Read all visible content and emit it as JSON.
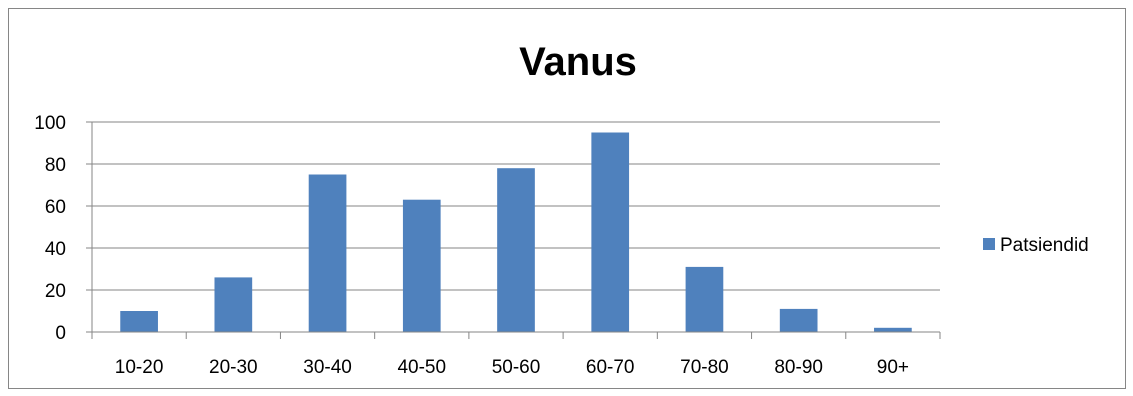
{
  "chart_data": {
    "type": "bar",
    "title": "Vanus",
    "categories": [
      "10-20",
      "20-30",
      "30-40",
      "40-50",
      "50-60",
      "60-70",
      "70-80",
      "80-90",
      "90+"
    ],
    "series": [
      {
        "name": "Patsiendid",
        "values": [
          10,
          26,
          75,
          63,
          78,
          95,
          31,
          11,
          2
        ],
        "color": "#4f81bd"
      }
    ],
    "ylim": [
      0,
      100
    ],
    "yticks": [
      0,
      20,
      40,
      60,
      80,
      100
    ],
    "grid": true,
    "legend": "right"
  }
}
